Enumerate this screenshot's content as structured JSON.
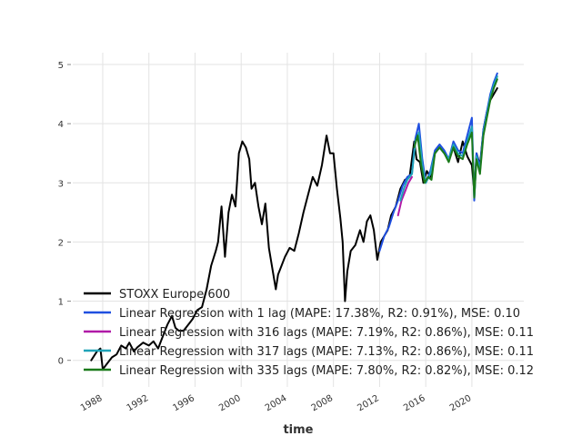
{
  "chart_data": {
    "type": "line",
    "title": "",
    "xlabel": "time",
    "ylabel": "",
    "xlim": [
      1985.4,
      2024.5
    ],
    "ylim": [
      -0.45,
      5.2
    ],
    "x_ticks": [
      1988,
      1992,
      1996,
      2000,
      2004,
      2008,
      2012,
      2016,
      2020
    ],
    "y_ticks": [
      0,
      1,
      2,
      3,
      4,
      5
    ],
    "grid": true,
    "legend_position": "lower-left",
    "series": [
      {
        "name": "STOXX Europe 600",
        "color": "#000000",
        "x": [
          1987.0,
          1987.5,
          1987.8,
          1988.0,
          1988.4,
          1988.8,
          1989.2,
          1989.6,
          1990.0,
          1990.3,
          1990.7,
          1991.0,
          1991.5,
          1992.0,
          1992.4,
          1992.8,
          1993.2,
          1993.6,
          1994.0,
          1994.3,
          1994.6,
          1995.0,
          1995.4,
          1995.8,
          1996.2,
          1996.6,
          1997.0,
          1997.4,
          1997.8,
          1998.0,
          1998.3,
          1998.6,
          1998.9,
          1999.2,
          1999.5,
          1999.8,
          2000.1,
          2000.4,
          2000.7,
          2000.9,
          2001.2,
          2001.5,
          2001.8,
          2002.1,
          2002.4,
          2002.7,
          2003.0,
          2003.2,
          2003.5,
          2003.8,
          2004.2,
          2004.6,
          2005.0,
          2005.4,
          2005.8,
          2006.2,
          2006.6,
          2007.0,
          2007.4,
          2007.7,
          2008.0,
          2008.3,
          2008.6,
          2008.8,
          2009.0,
          2009.2,
          2009.5,
          2009.9,
          2010.3,
          2010.6,
          2010.9,
          2011.2,
          2011.5,
          2011.8,
          2012.1,
          2012.4,
          2012.7,
          2013.0,
          2013.4,
          2013.8,
          2014.2,
          2014.6,
          2015.0,
          2015.2,
          2015.5,
          2015.8,
          2016.1,
          2016.4,
          2016.8,
          2017.2,
          2017.6,
          2018.0,
          2018.4,
          2018.8,
          2019.2,
          2019.6,
          2020.0,
          2020.2,
          2020.4,
          2020.7,
          2021.0,
          2021.3,
          2021.6,
          2021.9,
          2022.2
        ],
        "y": [
          0.0,
          0.15,
          0.2,
          -0.15,
          -0.05,
          0.05,
          0.1,
          0.25,
          0.2,
          0.3,
          0.15,
          0.22,
          0.3,
          0.25,
          0.32,
          0.2,
          0.4,
          0.6,
          0.75,
          0.55,
          0.5,
          0.5,
          0.6,
          0.7,
          0.85,
          0.9,
          1.2,
          1.6,
          1.85,
          2.0,
          2.6,
          1.75,
          2.5,
          2.8,
          2.6,
          3.5,
          3.7,
          3.6,
          3.4,
          2.9,
          3.0,
          2.6,
          2.3,
          2.65,
          1.9,
          1.55,
          1.2,
          1.45,
          1.6,
          1.75,
          1.9,
          1.85,
          2.15,
          2.5,
          2.8,
          3.1,
          2.95,
          3.3,
          3.8,
          3.5,
          3.5,
          2.9,
          2.4,
          2.0,
          1.0,
          1.5,
          1.85,
          1.95,
          2.2,
          2.0,
          2.35,
          2.45,
          2.2,
          1.7,
          2.0,
          2.1,
          2.2,
          2.45,
          2.6,
          2.9,
          3.05,
          3.1,
          3.7,
          3.4,
          3.35,
          3.0,
          3.2,
          3.1,
          3.5,
          3.6,
          3.5,
          3.4,
          3.6,
          3.35,
          3.7,
          3.45,
          3.3,
          2.85,
          3.5,
          3.3,
          3.9,
          4.2,
          4.4,
          4.5,
          4.6
        ]
      },
      {
        "name": "Linear Regression with 1 lag (MAPE: 17.38%, R2: 0.91%), MSE: 0.10",
        "color": "#1f4fe0",
        "x": [
          2012.0,
          2012.4,
          2012.8,
          2013.2,
          2013.6,
          2014.0,
          2014.4,
          2014.8,
          2015.1,
          2015.4,
          2015.7,
          2016.0,
          2016.4,
          2016.8,
          2017.2,
          2017.6,
          2018.0,
          2018.4,
          2018.8,
          2019.2,
          2019.6,
          2020.0,
          2020.2,
          2020.4,
          2020.7,
          2021.0,
          2021.3,
          2021.6,
          2021.9,
          2022.2
        ],
        "y": [
          1.85,
          2.1,
          2.25,
          2.5,
          2.7,
          2.95,
          3.1,
          3.15,
          3.75,
          4.0,
          3.4,
          3.0,
          3.2,
          3.55,
          3.65,
          3.55,
          3.4,
          3.7,
          3.55,
          3.5,
          3.8,
          4.1,
          2.7,
          3.5,
          3.25,
          3.9,
          4.2,
          4.5,
          4.7,
          4.85
        ]
      },
      {
        "name": "Linear Regression with 316 lags (MAPE: 7.19%, R2: 0.86%), MSE: 0.11",
        "color": "#b01aa7",
        "x": [
          2013.6,
          2013.9,
          2014.2,
          2014.5,
          2014.8
        ],
        "y": [
          2.45,
          2.7,
          2.85,
          3.0,
          3.1
        ]
      },
      {
        "name": "Linear Regression with 317 lags (MAPE: 7.13%, R2: 0.86%), MSE: 0.11",
        "color": "#1fa3b8",
        "x": [
          2013.8,
          2014.1,
          2014.4,
          2014.8,
          2015.1,
          2015.4,
          2015.7,
          2016.0,
          2016.4,
          2016.8,
          2017.2,
          2017.6,
          2018.0,
          2018.4,
          2018.8,
          2019.2,
          2019.6,
          2020.0,
          2020.2,
          2020.4,
          2020.7,
          2021.0,
          2021.3,
          2021.6,
          2021.9,
          2022.2
        ],
        "y": [
          2.7,
          2.9,
          3.05,
          3.15,
          3.7,
          3.85,
          3.3,
          3.0,
          3.15,
          3.5,
          3.6,
          3.5,
          3.4,
          3.65,
          3.5,
          3.45,
          3.7,
          3.95,
          2.75,
          3.45,
          3.2,
          3.85,
          4.15,
          4.45,
          4.65,
          4.8
        ]
      },
      {
        "name": "Linear Regression with 335 lags (MAPE: 7.80%, R2: 0.82%), MSE: 0.12",
        "color": "#1a7a1a",
        "x": [
          2015.0,
          2015.3,
          2015.6,
          2015.9,
          2016.2,
          2016.5,
          2016.8,
          2017.2,
          2017.6,
          2018.0,
          2018.4,
          2018.8,
          2019.2,
          2019.6,
          2020.0,
          2020.2,
          2020.4,
          2020.7,
          2021.0,
          2021.3,
          2021.6,
          2021.9,
          2022.2
        ],
        "y": [
          3.6,
          3.8,
          3.3,
          3.0,
          3.1,
          3.05,
          3.5,
          3.6,
          3.5,
          3.35,
          3.6,
          3.45,
          3.4,
          3.65,
          3.85,
          2.75,
          3.4,
          3.15,
          3.8,
          4.1,
          4.4,
          4.6,
          4.75
        ]
      }
    ]
  }
}
